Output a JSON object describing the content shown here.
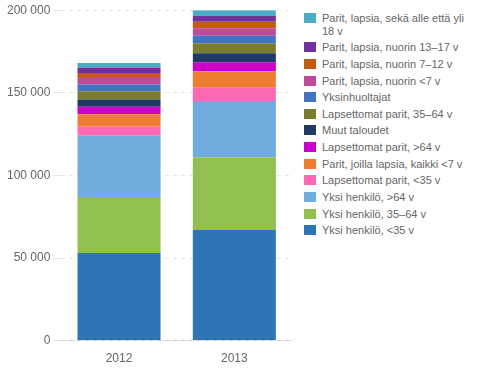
{
  "chart_data": {
    "type": "bar",
    "stacked": true,
    "categories": [
      "2012",
      "2013"
    ],
    "series": [
      {
        "name": "Yksi henkilö, <35 v",
        "color": "#2E75B6",
        "values": [
          53000,
          67000
        ]
      },
      {
        "name": "Yksi henkilö, 35–64 v",
        "color": "#92C050",
        "values": [
          34000,
          44000
        ]
      },
      {
        "name": "Yksi henkilö, >64 v",
        "color": "#70ADDE",
        "values": [
          37000,
          34000
        ]
      },
      {
        "name": "Lapsettomat parit, <35 v",
        "color": "#FF69B4",
        "values": [
          5500,
          8000
        ]
      },
      {
        "name": "Parit, joilla lapsia, kaikki  <7 v",
        "color": "#ED7D31",
        "values": [
          7500,
          10000
        ]
      },
      {
        "name": "Lapsettomat parit,  >64 v",
        "color": "#CC00CC",
        "values": [
          4500,
          5500
        ]
      },
      {
        "name": "Muut taloudet",
        "color": "#1F3864",
        "values": [
          4500,
          5500
        ]
      },
      {
        "name": "Lapsettomat parit, 35–64 v",
        "color": "#7B7C2E",
        "values": [
          5000,
          6000
        ]
      },
      {
        "name": "Yksinhuoltajat",
        "color": "#4472C4",
        "values": [
          4000,
          4500
        ]
      },
      {
        "name": "Parit, lapsia, nuorin <7 v",
        "color": "#BE4B9A",
        "values": [
          4000,
          4500
        ]
      },
      {
        "name": "Parit, lapsia, nuorin 7–12 v",
        "color": "#C55A11",
        "values": [
          3000,
          4000
        ]
      },
      {
        "name": "Parit, lapsia, nuorin 13–17 v",
        "color": "#7030A0",
        "values": [
          3000,
          3500
        ]
      },
      {
        "name": "Parit, lapsia, sekä alle että yli\n18 v",
        "color": "#4BACC6",
        "values": [
          3000,
          3500
        ]
      }
    ],
    "ylim": [
      0,
      200000
    ],
    "yticks": [
      0,
      {
        "value": 50000,
        "label": "50 000"
      },
      {
        "value": 100000,
        "label": "100 000"
      },
      {
        "value": 150000,
        "label": "150 000"
      },
      {
        "value": 200000,
        "label": "200 000"
      }
    ],
    "grid": true,
    "legend": "right"
  }
}
